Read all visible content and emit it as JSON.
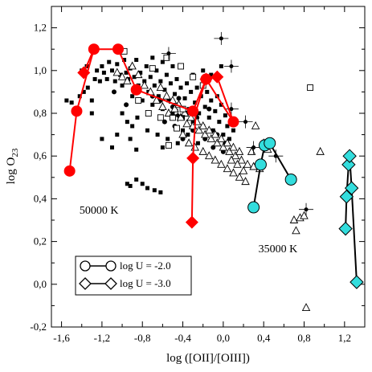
{
  "chart_data": {
    "type": "scatter",
    "xlabel": "log ([OII]/[OIII])",
    "ylabel_main": "log O",
    "ylabel_sub": "23",
    "xlim": [
      -1.7,
      1.4
    ],
    "ylim": [
      -0.2,
      1.3
    ],
    "x_ticks": [
      -1.6,
      -1.2,
      -0.8,
      -0.4,
      0.0,
      0.4,
      0.8,
      1.2
    ],
    "x_tick_labels": [
      "-1,6",
      "-1,2",
      "-0,8",
      "-0,4",
      "0,0",
      "0,4",
      "0,8",
      "1,2"
    ],
    "y_ticks": [
      -0.2,
      0.0,
      0.2,
      0.4,
      0.6,
      0.8,
      1.0,
      1.2
    ],
    "y_tick_labels": [
      "-0,2",
      "0,0",
      "0,2",
      "0,4",
      "0,6",
      "0,8",
      "1,0",
      "1,2"
    ],
    "grid": false,
    "annotations": [
      {
        "text": "50000 K",
        "x": -1.2,
        "y": 0.33
      },
      {
        "text": "35000 K",
        "x": 0.57,
        "y": 0.15
      }
    ],
    "legend": {
      "placement": "bottom-left",
      "entries": [
        {
          "label": "log U = -2.0",
          "marker": "circle"
        },
        {
          "label": "log U = -3.0",
          "marker": "diamond"
        }
      ]
    },
    "series": [
      {
        "model": "50000 K, log U = -2.0",
        "marker": "circle",
        "color": "#ff0000",
        "points": [
          [
            -1.52,
            0.53
          ],
          [
            -1.45,
            0.81
          ],
          [
            -1.28,
            1.1
          ],
          [
            -1.04,
            1.1
          ],
          [
            -0.86,
            0.91
          ],
          [
            -0.3,
            0.81
          ],
          [
            -0.17,
            0.96
          ],
          [
            0.1,
            0.76
          ]
        ]
      },
      {
        "model": "50000 K, log U = -3.0",
        "marker": "diamond",
        "color": "#ff0000",
        "segments": [
          [
            [
              -1.38,
              0.99
            ],
            [
              -1.28,
              1.1
            ]
          ],
          [
            [
              -0.31,
              0.29
            ],
            [
              -0.3,
              0.59
            ],
            [
              -0.27,
              0.81
            ]
          ],
          [
            [
              -0.27,
              0.81
            ],
            [
              -0.17,
              0.96
            ],
            [
              -0.06,
              0.97
            ],
            [
              0.1,
              0.76
            ]
          ]
        ],
        "points": [
          [
            -1.38,
            0.99
          ],
          [
            -0.31,
            0.29
          ],
          [
            -0.3,
            0.59
          ],
          [
            -0.17,
            0.96
          ],
          [
            -0.06,
            0.97
          ]
        ]
      },
      {
        "model": "35000 K, log U = -2.0",
        "marker": "circle",
        "color": "#33dddd",
        "points": [
          [
            0.3,
            0.36
          ],
          [
            0.37,
            0.56
          ],
          [
            0.41,
            0.65
          ],
          [
            0.46,
            0.66
          ],
          [
            0.67,
            0.49
          ]
        ]
      },
      {
        "model": "35000 K, log U = -3.0",
        "marker": "diamond",
        "color": "#33dddd",
        "points": [
          [
            1.21,
            0.26
          ],
          [
            1.22,
            0.41
          ],
          [
            1.24,
            0.56
          ],
          [
            1.25,
            0.6
          ],
          [
            1.27,
            0.45
          ],
          [
            1.32,
            0.01
          ]
        ]
      },
      {
        "name_hidden": "observed squares",
        "marker": "square",
        "points": [
          [
            -1.55,
            0.86
          ],
          [
            -1.5,
            0.85
          ],
          [
            -1.42,
            0.88
          ],
          [
            -1.38,
            0.9
          ],
          [
            -1.34,
            0.92
          ],
          [
            -1.3,
            0.86
          ],
          [
            -1.27,
            0.96
          ],
          [
            -1.25,
            1.0
          ],
          [
            -1.22,
            0.95
          ],
          [
            -1.2,
            1.02
          ],
          [
            -1.18,
            0.99
          ],
          [
            -1.15,
            0.96
          ],
          [
            -1.13,
            1.04
          ],
          [
            -1.1,
            1.0
          ],
          [
            -1.07,
            0.95
          ],
          [
            -1.05,
            1.03
          ],
          [
            -1.02,
            0.98
          ],
          [
            -1.0,
            0.93
          ],
          [
            -0.98,
            1.05
          ],
          [
            -0.96,
            0.99
          ],
          [
            -0.94,
            0.96
          ],
          [
            -0.92,
            1.01
          ],
          [
            -0.9,
            0.88
          ],
          [
            -0.88,
            0.97
          ],
          [
            -0.86,
            1.05
          ],
          [
            -0.84,
            0.93
          ],
          [
            -0.82,
            0.99
          ],
          [
            -0.8,
            0.86
          ],
          [
            -0.78,
            0.95
          ],
          [
            -0.76,
            1.02
          ],
          [
            -0.74,
            0.9
          ],
          [
            -0.72,
            0.97
          ],
          [
            -0.7,
            0.84
          ],
          [
            -0.68,
            0.93
          ],
          [
            -0.66,
            1.0
          ],
          [
            -0.64,
            0.88
          ],
          [
            -0.62,
            0.95
          ],
          [
            -0.6,
            0.82
          ],
          [
            -0.58,
            0.91
          ],
          [
            -0.56,
            0.98
          ],
          [
            -0.54,
            0.86
          ],
          [
            -0.52,
            0.94
          ],
          [
            -0.5,
            0.8
          ],
          [
            -0.48,
            0.89
          ],
          [
            -0.46,
            0.96
          ],
          [
            -0.44,
            0.84
          ],
          [
            -0.42,
            0.92
          ],
          [
            -0.4,
            0.78
          ],
          [
            -0.38,
            0.87
          ],
          [
            -0.36,
            0.94
          ],
          [
            -0.34,
            0.82
          ],
          [
            -0.32,
            0.9
          ],
          [
            -0.3,
            0.76
          ],
          [
            -0.28,
            0.85
          ],
          [
            -0.26,
            0.92
          ],
          [
            -0.24,
            0.8
          ],
          [
            -0.22,
            0.88
          ],
          [
            -0.2,
            0.74
          ],
          [
            -0.18,
            0.83
          ],
          [
            -0.16,
            0.9
          ],
          [
            -0.14,
            0.78
          ],
          [
            -0.12,
            0.86
          ],
          [
            -0.1,
            0.72
          ],
          [
            -0.08,
            0.81
          ],
          [
            -0.06,
            0.88
          ],
          [
            -0.04,
            0.76
          ],
          [
            -0.02,
            0.84
          ],
          [
            0.0,
            0.7
          ],
          [
            0.02,
            0.79
          ],
          [
            0.04,
            0.74
          ],
          [
            0.06,
            0.68
          ],
          [
            0.1,
            0.72
          ],
          [
            -1.0,
            0.8
          ],
          [
            -0.95,
            0.76
          ],
          [
            -0.9,
            0.74
          ],
          [
            -0.85,
            0.78
          ],
          [
            -0.75,
            0.72
          ],
          [
            -0.65,
            0.7
          ],
          [
            -0.55,
            0.68
          ],
          [
            -0.45,
            0.66
          ],
          [
            -0.35,
            0.7
          ],
          [
            -0.25,
            0.66
          ],
          [
            -1.05,
            0.7
          ],
          [
            -0.92,
            0.68
          ],
          [
            -0.6,
            0.64
          ],
          [
            -1.1,
            0.64
          ],
          [
            -0.4,
            0.72
          ],
          [
            -1.3,
            0.8
          ],
          [
            -1.4,
            1.0
          ],
          [
            -1.35,
            1.02
          ],
          [
            -0.7,
            1.06
          ],
          [
            -0.6,
            1.04
          ],
          [
            -0.5,
            1.02
          ],
          [
            -0.3,
            0.98
          ],
          [
            -0.2,
            1.0
          ],
          [
            -0.12,
            0.98
          ],
          [
            -0.02,
            1.02
          ],
          [
            -1.2,
            0.68
          ],
          [
            -0.86,
            0.63
          ],
          [
            -0.95,
            0.47
          ],
          [
            -0.92,
            0.46
          ],
          [
            -0.86,
            0.49
          ],
          [
            -0.8,
            0.47
          ],
          [
            -0.75,
            0.45
          ],
          [
            -0.68,
            0.44
          ],
          [
            -0.62,
            0.43
          ]
        ]
      },
      {
        "name_hidden": "observed circles",
        "marker": "filled-circle",
        "points": [
          [
            -0.7,
            0.88
          ],
          [
            -0.62,
            0.86
          ],
          [
            -0.5,
            0.83
          ],
          [
            -0.44,
            0.87
          ],
          [
            -0.36,
            0.8
          ],
          [
            -0.26,
            0.78
          ],
          [
            -0.14,
            0.82
          ],
          [
            -0.06,
            0.7
          ],
          [
            0.02,
            0.66
          ],
          [
            -1.08,
            0.9
          ],
          [
            -0.96,
            0.84
          ],
          [
            -0.84,
            0.9
          ],
          [
            -0.58,
            0.76
          ],
          [
            -0.48,
            0.74
          ],
          [
            -0.4,
            0.68
          ],
          [
            -0.3,
            0.72
          ],
          [
            -0.18,
            0.68
          ],
          [
            -0.1,
            0.64
          ],
          [
            0.0,
            0.62
          ]
        ]
      },
      {
        "name_hidden": "observed open triangles",
        "marker": "triangle",
        "points": [
          [
            -0.9,
            1.02
          ],
          [
            -0.84,
            0.98
          ],
          [
            -0.78,
            0.93
          ],
          [
            -0.72,
            0.9
          ],
          [
            -0.66,
            0.86
          ],
          [
            -0.6,
            0.83
          ],
          [
            -0.54,
            0.8
          ],
          [
            -0.48,
            0.82
          ],
          [
            -0.42,
            0.78
          ],
          [
            -0.36,
            0.75
          ],
          [
            -0.3,
            0.74
          ],
          [
            -0.24,
            0.72
          ],
          [
            -0.18,
            0.7
          ],
          [
            -0.12,
            0.68
          ],
          [
            -0.06,
            0.66
          ],
          [
            0.0,
            0.64
          ],
          [
            0.06,
            0.62
          ],
          [
            0.12,
            0.6
          ],
          [
            0.18,
            0.58
          ],
          [
            0.24,
            0.56
          ],
          [
            0.3,
            0.55
          ],
          [
            0.36,
            0.54
          ],
          [
            -0.4,
            0.7
          ],
          [
            -0.34,
            0.66
          ],
          [
            -0.28,
            0.64
          ],
          [
            -0.2,
            0.62
          ],
          [
            -0.14,
            0.6
          ],
          [
            -0.08,
            0.58
          ],
          [
            -0.02,
            0.56
          ],
          [
            0.04,
            0.54
          ],
          [
            0.1,
            0.52
          ],
          [
            0.16,
            0.5
          ],
          [
            0.22,
            0.48
          ],
          [
            0.28,
            0.62
          ],
          [
            0.32,
            0.74
          ],
          [
            0.7,
            0.3
          ],
          [
            0.76,
            0.31
          ],
          [
            0.8,
            0.32
          ],
          [
            0.72,
            0.25
          ],
          [
            0.82,
            -0.11
          ],
          [
            0.96,
            0.62
          ],
          [
            -0.62,
            0.92
          ],
          [
            -0.56,
            0.88
          ],
          [
            -0.5,
            0.86
          ],
          [
            -0.44,
            0.84
          ],
          [
            -0.38,
            0.8
          ],
          [
            -0.32,
            0.78
          ],
          [
            -0.26,
            0.76
          ],
          [
            -0.2,
            0.74
          ],
          [
            -0.14,
            0.72
          ],
          [
            -0.08,
            0.7
          ],
          [
            -0.02,
            0.68
          ],
          [
            0.04,
            0.66
          ],
          [
            0.1,
            0.64
          ],
          [
            0.16,
            0.62
          ],
          [
            -1.05,
            0.99
          ],
          [
            -1.0,
            0.97
          ],
          [
            -0.95,
            0.95
          ],
          [
            0.4,
            0.66
          ],
          [
            0.44,
            0.63
          ],
          [
            0.2,
            0.53
          ],
          [
            0.14,
            0.56
          ],
          [
            0.08,
            0.58
          ]
        ]
      },
      {
        "name_hidden": "observed open squares",
        "marker": "open-square",
        "points": [
          [
            -0.98,
            1.09
          ],
          [
            -0.7,
            1.01
          ],
          [
            -0.56,
            1.06
          ],
          [
            -0.42,
            1.02
          ],
          [
            -0.3,
            0.97
          ],
          [
            -0.2,
            0.93
          ],
          [
            -0.5,
            0.78
          ],
          [
            -0.4,
            0.82
          ],
          [
            -0.62,
            0.78
          ],
          [
            -0.74,
            0.8
          ],
          [
            -0.84,
            0.86
          ],
          [
            0.86,
            0.92
          ],
          [
            -0.54,
            0.65
          ],
          [
            -0.46,
            0.73
          ]
        ]
      },
      {
        "name_hidden": "observed dots with error bars",
        "marker": "dot-errorbar",
        "points": [
          [
            -0.02,
            1.15
          ],
          [
            0.08,
            1.02
          ],
          [
            -0.54,
            1.08
          ],
          [
            -0.45,
            0.79
          ],
          [
            0.52,
            0.6
          ],
          [
            0.82,
            0.35
          ],
          [
            0.3,
            0.64
          ],
          [
            0.22,
            0.76
          ],
          [
            0.08,
            0.82
          ]
        ]
      }
    ]
  }
}
